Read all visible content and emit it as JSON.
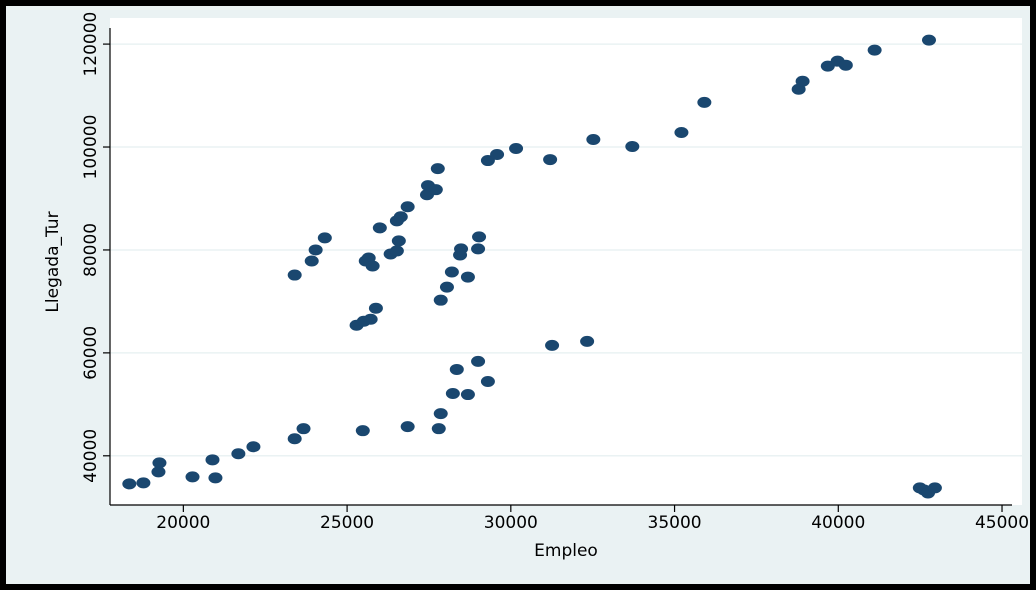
{
  "chart_data": {
    "type": "scatter",
    "xlabel": "Empleo",
    "ylabel": "Llegada_Tur",
    "color": "#1a476f",
    "x": [
      18350,
      18780,
      19240,
      19270,
      20280,
      20890,
      20980,
      21680,
      22140,
      23400,
      23670,
      25480,
      26850,
      27800,
      27860,
      28230,
      28690,
      28350,
      29000,
      29300,
      31260,
      32330,
      23400,
      23920,
      24040,
      24320,
      25290,
      25510,
      25720,
      25880,
      25570,
      25660,
      25780,
      26000,
      26330,
      26520,
      26580,
      26520,
      26640,
      26850,
      27440,
      27470,
      27710,
      27770,
      27860,
      28050,
      28200,
      28450,
      28480,
      28690,
      29000,
      29030,
      29300,
      29580,
      30160,
      31200,
      32520,
      33710,
      35210,
      35910,
      38790,
      38910,
      39680,
      39980,
      40230,
      41110,
      42770,
      42490,
      42610,
      42740,
      42950
    ],
    "y": [
      34540,
      34730,
      36880,
      38630,
      35900,
      39220,
      35710,
      40390,
      41760,
      43320,
      45270,
      44880,
      45660,
      45270,
      48200,
      52100,
      51900,
      56780,
      58340,
      54440,
      61460,
      62240,
      75120,
      77850,
      80000,
      82340,
      65370,
      66150,
      66540,
      68680,
      77850,
      78440,
      76880,
      84290,
      79220,
      79810,
      81760,
      85660,
      86440,
      88390,
      90730,
      92490,
      91710,
      95810,
      70240,
      72780,
      75710,
      79020,
      80200,
      74730,
      80200,
      82540,
      97370,
      98540,
      99710,
      97560,
      101460,
      100100,
      102830,
      108680,
      111220,
      112780,
      115710,
      116680,
      115900,
      118830,
      120780,
      33760,
      33370,
      32780,
      33760
    ],
    "xlim": [
      17760,
      45610
    ],
    "ylim": [
      30440,
      125070
    ],
    "xticks": [
      20000,
      25000,
      30000,
      35000,
      40000,
      45000
    ],
    "yticks": [
      40000,
      60000,
      80000,
      100000,
      120000
    ],
    "grid": true
  }
}
